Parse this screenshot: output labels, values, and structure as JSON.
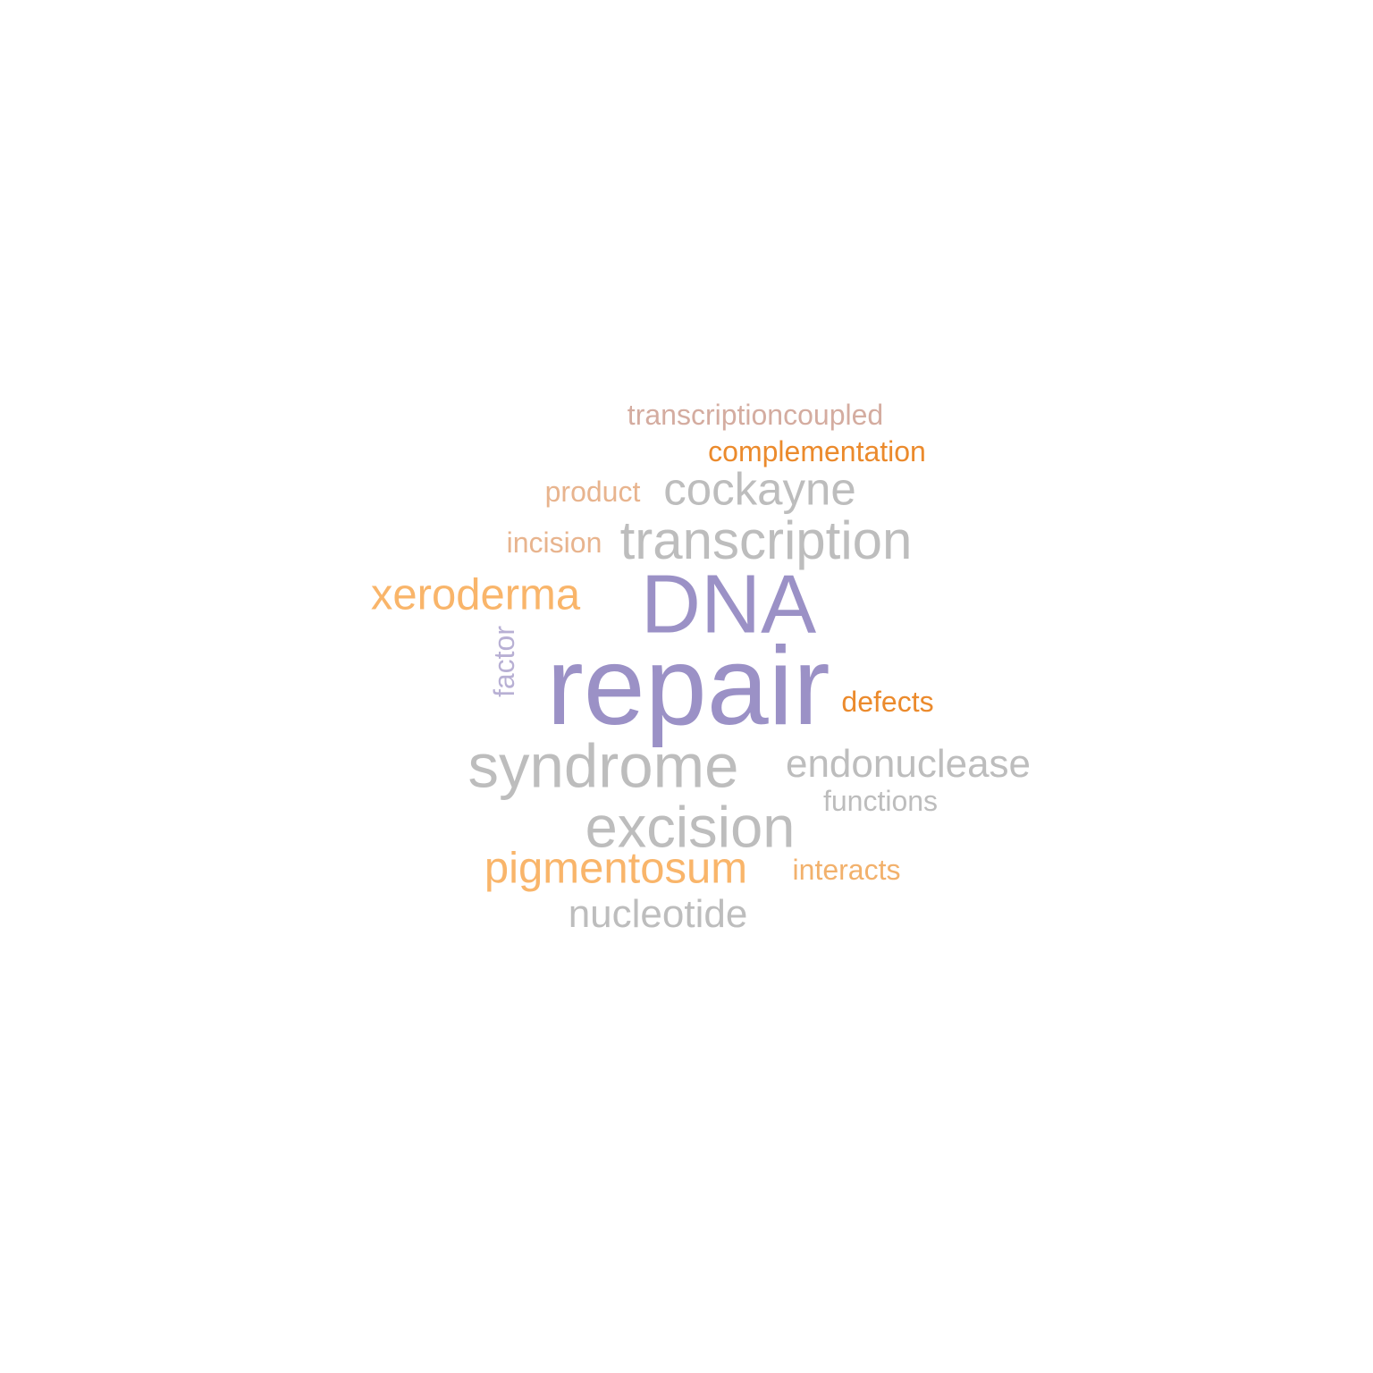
{
  "words": {
    "repair": {
      "text": "repair",
      "color": "#9b91c6"
    },
    "dna": {
      "text": "DNA",
      "color": "#9b91c6"
    },
    "syndrome": {
      "text": "syndrome",
      "color": "#bdbdbd"
    },
    "excision": {
      "text": "excision",
      "color": "#bdbdbd"
    },
    "transcription": {
      "text": "transcription",
      "color": "#bdbdbd"
    },
    "xeroderma": {
      "text": "xeroderma",
      "color": "#f9b56a"
    },
    "pigmentosum": {
      "text": "pigmentosum",
      "color": "#f9b56a"
    },
    "cockayne": {
      "text": "cockayne",
      "color": "#bdbdbd"
    },
    "nucleotide": {
      "text": "nucleotide",
      "color": "#bdbdbd"
    },
    "endonuclease": {
      "text": "endonuclease",
      "color": "#bdbdbd"
    },
    "transcriptioncoupled": {
      "text": "transcriptioncoupled",
      "color": "#d4aca0"
    },
    "complementation": {
      "text": "complementation",
      "color": "#eb8a2c"
    },
    "product": {
      "text": "product",
      "color": "#e8b48e"
    },
    "incision": {
      "text": "incision",
      "color": "#e8b48e"
    },
    "factor": {
      "text": "factor",
      "color": "#b8b0d4"
    },
    "defects": {
      "text": "defects",
      "color": "#eb8a2c"
    },
    "functions": {
      "text": "functions",
      "color": "#bdbdbd"
    },
    "interacts": {
      "text": "interacts",
      "color": "#f2b16c"
    }
  }
}
